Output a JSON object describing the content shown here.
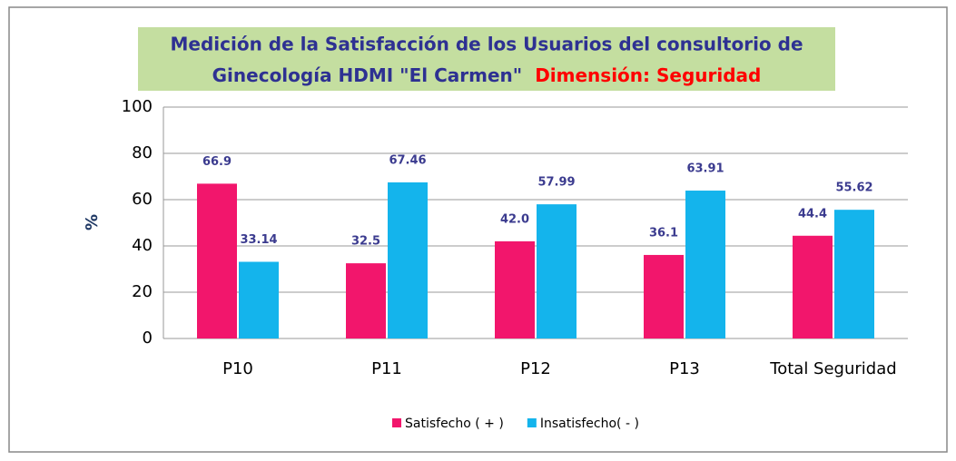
{
  "chart_data": {
    "type": "bar",
    "title": [
      "Medición de la Satisfacción de los Usuarios del consultorio de",
      "Ginecología  HDMI \"El Carmen\""
    ],
    "subtitle": "Dimensión: Seguridad",
    "y_label": "%",
    "categories": [
      "P10",
      "P11",
      "P12",
      "P13",
      "Total Seguridad"
    ],
    "series": [
      {
        "name": "Satisfecho ( + )",
        "color": "#f2166c",
        "values": [
          66.9,
          32.5,
          42.0,
          36.1,
          44.4
        ],
        "value_labels": [
          "66.9",
          "32.5",
          "42.0",
          "36.1",
          "44.4"
        ]
      },
      {
        "name": "Insatisfecho( - )",
        "color": "#14b4ec",
        "values": [
          33.14,
          67.46,
          57.99,
          63.91,
          55.62
        ]
      }
    ],
    "ylim": [
      0,
      100
    ],
    "yticks": [
      0,
      20,
      40,
      60,
      80,
      100
    ],
    "grid": true,
    "legend": "bottom"
  }
}
